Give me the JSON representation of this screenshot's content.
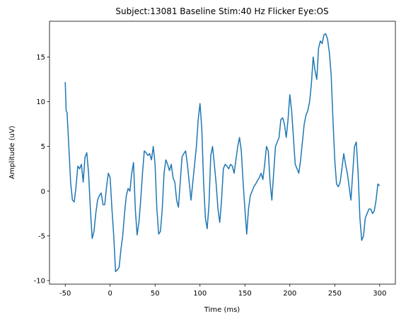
{
  "chart_data": {
    "type": "line",
    "title": "Subject:13081 Baseline Stim:40 Hz Flicker Eye:OS",
    "xlabel": "Time (ms)",
    "ylabel": "Amplitude (uV)",
    "x": [
      -50,
      -49,
      -48,
      -46,
      -44,
      -42,
      -40,
      -38,
      -36,
      -34,
      -32,
      -30,
      -28,
      -26,
      -24,
      -22,
      -20,
      -18,
      -16,
      -14,
      -12,
      -10,
      -8,
      -6,
      -4,
      -2,
      0,
      2,
      4,
      6,
      8,
      10,
      12,
      14,
      16,
      18,
      20,
      22,
      24,
      26,
      28,
      30,
      32,
      34,
      36,
      38,
      40,
      42,
      44,
      46,
      48,
      50,
      52,
      54,
      56,
      58,
      60,
      62,
      64,
      66,
      68,
      70,
      72,
      74,
      76,
      78,
      80,
      82,
      84,
      86,
      88,
      90,
      92,
      94,
      96,
      98,
      100,
      102,
      104,
      106,
      108,
      110,
      112,
      114,
      116,
      118,
      120,
      122,
      124,
      126,
      128,
      130,
      132,
      134,
      136,
      138,
      140,
      142,
      144,
      146,
      148,
      150,
      152,
      154,
      156,
      158,
      160,
      162,
      164,
      166,
      168,
      170,
      172,
      174,
      176,
      178,
      180,
      182,
      184,
      186,
      188,
      190,
      192,
      194,
      196,
      198,
      200,
      202,
      204,
      206,
      208,
      210,
      212,
      214,
      216,
      218,
      220,
      222,
      224,
      226,
      228,
      230,
      232,
      234,
      236,
      238,
      240,
      242,
      244,
      246,
      248,
      250,
      252,
      254,
      256,
      258,
      260,
      262,
      264,
      266,
      268,
      270,
      272,
      274,
      276,
      278,
      280,
      282,
      284,
      286,
      288,
      290,
      292,
      294,
      296,
      298,
      300
    ],
    "series": [
      {
        "name": "Amplitude",
        "color": "#1f77b4",
        "values": [
          12.2,
          9,
          8.8,
          5,
          1,
          -1,
          -1.2,
          0.5,
          2.8,
          2.5,
          3,
          1,
          3.8,
          4.3,
          2,
          -2,
          -5.3,
          -4.5,
          -2.5,
          -1,
          -0.5,
          -0.2,
          -1.5,
          -1.5,
          0.5,
          2,
          1.5,
          -2,
          -5,
          -9,
          -8.8,
          -8.5,
          -6.5,
          -5,
          -2.5,
          -0.5,
          0.3,
          0,
          2,
          3.2,
          -2,
          -4.9,
          -3.5,
          -1,
          2,
          4.5,
          4.3,
          4,
          4.2,
          3.5,
          5,
          3,
          -2,
          -4.8,
          -4.5,
          -2,
          2,
          3.5,
          3,
          2.3,
          3,
          1.5,
          1,
          -1,
          -1.8,
          1,
          3.8,
          4.2,
          4.5,
          3,
          1,
          -1,
          1,
          3,
          5,
          8,
          9.8,
          7,
          1,
          -3,
          -4.2,
          -1.5,
          4,
          5,
          3,
          0.8,
          -2,
          -3.5,
          -1,
          2.5,
          3,
          2.8,
          2.5,
          3,
          2.8,
          2,
          3.5,
          5,
          6,
          4.5,
          1,
          -2,
          -4.8,
          -2,
          -0.5,
          0,
          0.5,
          0.8,
          1.2,
          1.5,
          2,
          1.3,
          3,
          5,
          4.5,
          1,
          -1,
          2,
          5,
          5.5,
          6,
          8,
          8.2,
          7.5,
          6,
          8,
          10.8,
          9,
          6,
          3,
          2.5,
          2,
          3.5,
          5.5,
          7.5,
          8.5,
          9,
          10,
          12,
          15,
          13.5,
          12.5,
          16,
          16.8,
          16.5,
          17.5,
          17.6,
          17,
          15.5,
          13,
          8,
          3.5,
          0.8,
          0.5,
          1,
          2.5,
          4.2,
          3,
          2,
          0.5,
          -1,
          2,
          5,
          5.5,
          2,
          -3,
          -5.5,
          -5,
          -3,
          -2.5,
          -2,
          -2,
          -2.5,
          -2.2,
          -1,
          0.8,
          0.6
        ]
      }
    ],
    "xlim": [
      -67.5,
      317.5
    ],
    "xticks": [
      -50,
      0,
      50,
      100,
      150,
      200,
      250,
      300
    ],
    "ylim": [
      -10.4,
      19
    ],
    "yticks": [
      -10,
      -5,
      0,
      5,
      10,
      15
    ],
    "grid": false
  }
}
